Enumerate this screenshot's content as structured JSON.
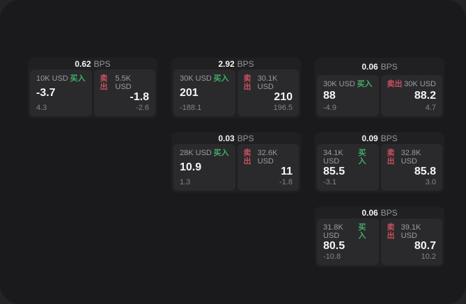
{
  "page": {
    "background": "#242428",
    "panel_background": "#1a1a1c"
  },
  "colors": {
    "buy_accent": "#3fae68",
    "sell_accent": "#c8505f",
    "card_background": "#202022",
    "tile_background": "#2a2a2c",
    "value_text": "#f5f5f5",
    "muted_text": "#9c9ca2"
  },
  "labels": {
    "bps_unit": "BPS",
    "buy": "买入",
    "sell": "卖出"
  },
  "cards": [
    {
      "bps": "0.62",
      "buy": {
        "size": "10K USD",
        "value": "-3.7",
        "delta": "4.3"
      },
      "sell": {
        "size": "5.5K USD",
        "value": "-1.8",
        "delta": "-2.6"
      }
    },
    {
      "bps": "2.92",
      "buy": {
        "size": "30K USD",
        "value": "201",
        "delta": "-188.1"
      },
      "sell": {
        "size": "30.1K USD",
        "value": "210",
        "delta": "196.5"
      }
    },
    {
      "bps": "0.06",
      "buy": {
        "size": "30K USD",
        "value": "88",
        "delta": "-4.9"
      },
      "sell": {
        "size": "30K USD",
        "value": "88.2",
        "delta": "4.7"
      }
    },
    {
      "bps": "0.03",
      "buy": {
        "size": "28K USD",
        "value": "10.9",
        "delta": "1.3"
      },
      "sell": {
        "size": "32.6K USD",
        "value": "11",
        "delta": "-1.8"
      }
    },
    {
      "bps": "0.09",
      "buy": {
        "size": "34.1K USD",
        "value": "85.5",
        "delta": "-3.1"
      },
      "sell": {
        "size": "32.8K USD",
        "value": "85.8",
        "delta": "3.0"
      }
    },
    {
      "bps": "0.06",
      "buy": {
        "size": "31.8K USD",
        "value": "80.5",
        "delta": "-10.8"
      },
      "sell": {
        "size": "39.1K USD",
        "value": "80.7",
        "delta": "10.2"
      }
    }
  ],
  "layout_columns": [
    [
      0
    ],
    [
      1,
      3
    ],
    [
      2,
      4,
      5
    ]
  ]
}
